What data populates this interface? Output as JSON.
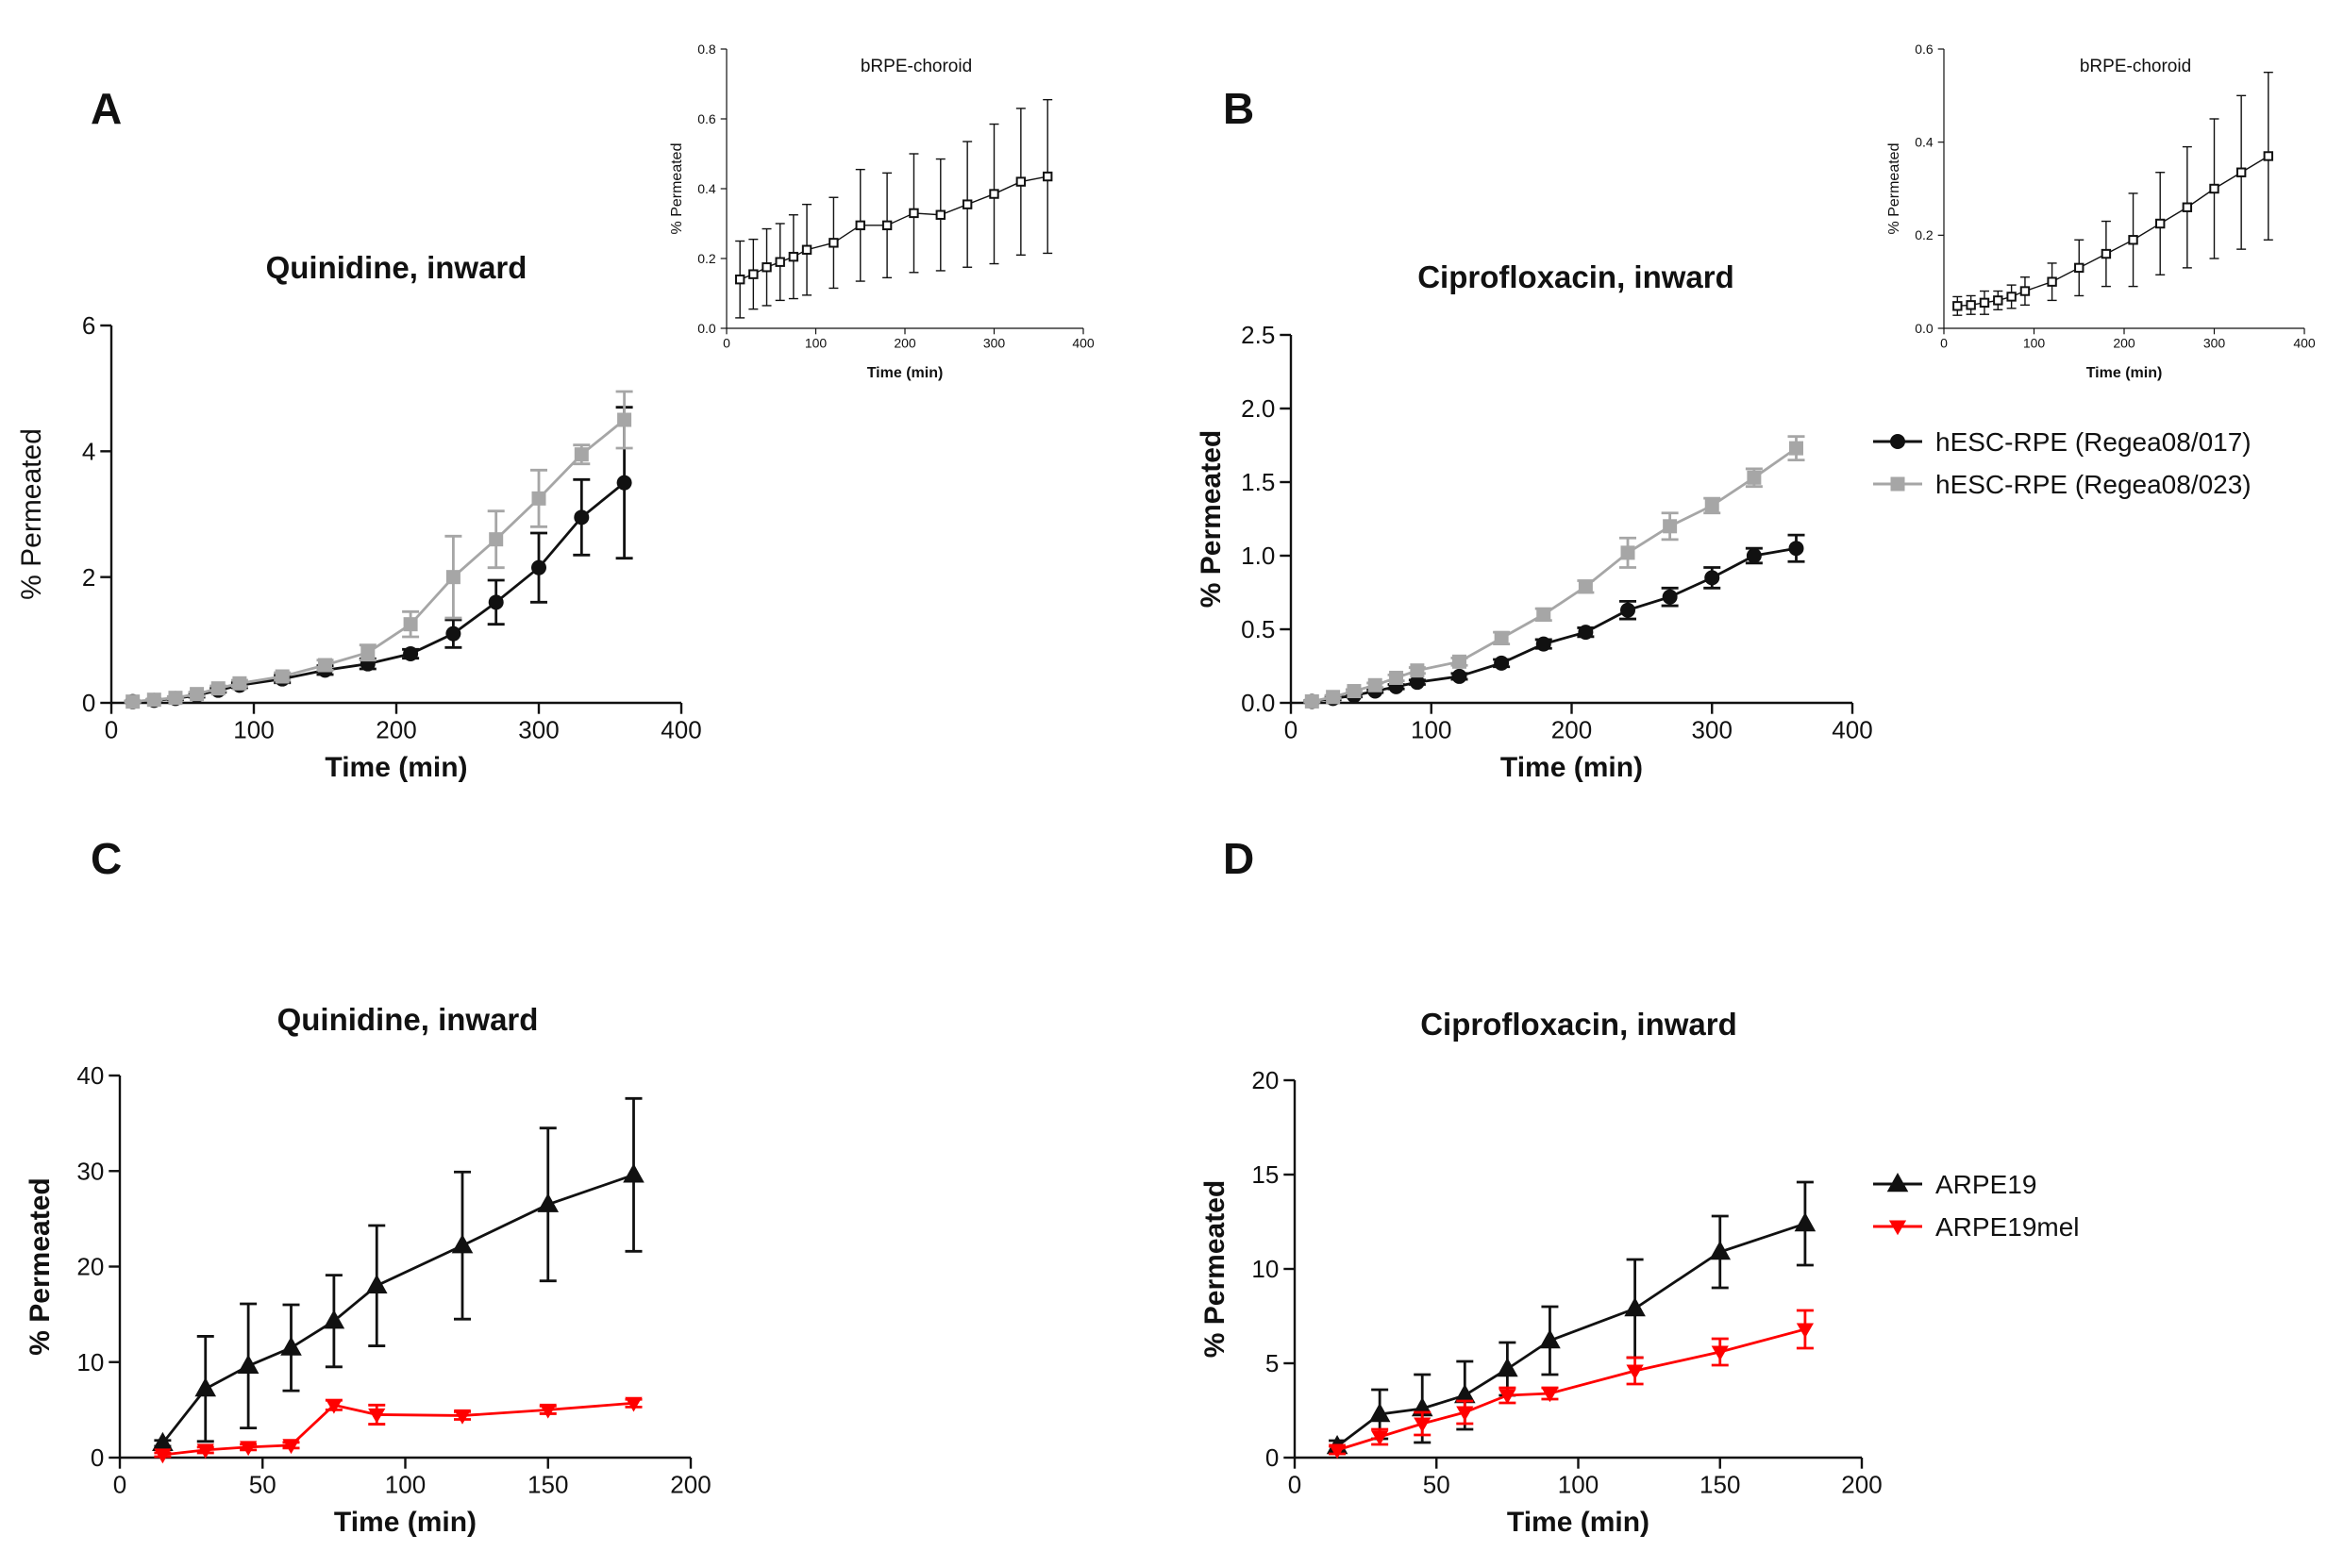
{
  "figure": {
    "panel_letters": {
      "A": "A",
      "B": "B",
      "C": "C",
      "D": "D"
    },
    "colors": {
      "black": "#111111",
      "gray": "#a6a6a6",
      "red": "#ff0000",
      "axis": "#111111"
    }
  },
  "chart_data": [
    {
      "id": "A",
      "type": "line",
      "title": "Quinidine, inward",
      "xlabel": "Time (min)",
      "ylabel": "% Permeated",
      "xlim": [
        0,
        400
      ],
      "ylim": [
        0,
        6
      ],
      "xticks": [
        0,
        100,
        200,
        300,
        400
      ],
      "yticks": [
        0,
        2,
        4,
        6
      ],
      "x": [
        15,
        30,
        45,
        60,
        75,
        90,
        120,
        150,
        180,
        210,
        240,
        270,
        300,
        330,
        360
      ],
      "series": [
        {
          "name": "hESC-RPE (Regea08/017)",
          "color": "#111111",
          "marker": "circle",
          "values": [
            0.02,
            0.04,
            0.07,
            0.12,
            0.2,
            0.28,
            0.38,
            0.52,
            0.62,
            0.78,
            1.1,
            1.6,
            2.15,
            2.95,
            3.5
          ],
          "errors": [
            0.01,
            0.01,
            0.02,
            0.03,
            0.03,
            0.04,
            0.06,
            0.07,
            0.08,
            0.07,
            0.22,
            0.35,
            0.55,
            0.6,
            1.2
          ]
        },
        {
          "name": "hESC-RPE (Regea08/023)",
          "color": "#a6a6a6",
          "marker": "square",
          "values": [
            0.02,
            0.05,
            0.08,
            0.14,
            0.23,
            0.31,
            0.42,
            0.6,
            0.8,
            1.25,
            2.0,
            2.6,
            3.25,
            3.95,
            4.5
          ],
          "errors": [
            0.01,
            0.01,
            0.02,
            0.03,
            0.04,
            0.05,
            0.06,
            0.08,
            0.12,
            0.2,
            0.65,
            0.45,
            0.45,
            0.15,
            0.45
          ]
        }
      ],
      "inset": {
        "title": "bRPE-choroid",
        "xlabel": "Time (min)",
        "ylabel": "% Permeated",
        "xlim": [
          0,
          400
        ],
        "ylim": [
          0,
          0.8
        ],
        "xticks": [
          0,
          100,
          200,
          300,
          400
        ],
        "yticks": [
          0.0,
          0.2,
          0.4,
          0.6,
          0.8
        ],
        "ytick_labels": [
          "0.0",
          "0.2",
          "0.4",
          "0.6",
          "0.8"
        ],
        "x": [
          15,
          30,
          45,
          60,
          75,
          90,
          120,
          150,
          180,
          210,
          240,
          270,
          300,
          330,
          360
        ],
        "values": [
          0.14,
          0.155,
          0.175,
          0.19,
          0.205,
          0.225,
          0.245,
          0.295,
          0.295,
          0.33,
          0.325,
          0.355,
          0.385,
          0.42,
          0.435
        ],
        "errors": [
          0.11,
          0.1,
          0.11,
          0.11,
          0.12,
          0.13,
          0.13,
          0.16,
          0.15,
          0.17,
          0.16,
          0.18,
          0.2,
          0.21,
          0.22
        ]
      }
    },
    {
      "id": "B",
      "type": "line",
      "title": "Ciprofloxacin, inward",
      "xlabel": "Time (min)",
      "ylabel": "% Permeated",
      "xlim": [
        0,
        400
      ],
      "ylim": [
        0,
        2.5
      ],
      "xticks": [
        0,
        100,
        200,
        300,
        400
      ],
      "yticks": [
        0,
        0.5,
        1.0,
        1.5,
        2.0,
        2.5
      ],
      "ytick_labels": [
        "0.0",
        "0.5",
        "1.0",
        "1.5",
        "2.0",
        "2.5"
      ],
      "x": [
        15,
        30,
        45,
        60,
        75,
        90,
        120,
        150,
        180,
        210,
        240,
        270,
        300,
        330,
        360
      ],
      "legend": [
        "hESC-RPE (Regea08/017)",
        "hESC-RPE (Regea08/023)"
      ],
      "series": [
        {
          "name": "hESC-RPE (Regea08/017)",
          "color": "#111111",
          "marker": "circle",
          "values": [
            0.01,
            0.03,
            0.05,
            0.08,
            0.11,
            0.14,
            0.18,
            0.27,
            0.4,
            0.48,
            0.63,
            0.72,
            0.85,
            1.0,
            1.05
          ],
          "errors": [
            0.005,
            0.01,
            0.01,
            0.01,
            0.015,
            0.015,
            0.02,
            0.025,
            0.03,
            0.03,
            0.06,
            0.06,
            0.07,
            0.05,
            0.09
          ]
        },
        {
          "name": "hESC-RPE (Regea08/023)",
          "color": "#a6a6a6",
          "marker": "square",
          "values": [
            0.01,
            0.04,
            0.08,
            0.12,
            0.17,
            0.22,
            0.28,
            0.44,
            0.6,
            0.79,
            1.02,
            1.2,
            1.34,
            1.53,
            1.73
          ],
          "errors": [
            0.005,
            0.01,
            0.01,
            0.015,
            0.02,
            0.02,
            0.025,
            0.04,
            0.04,
            0.04,
            0.1,
            0.09,
            0.05,
            0.06,
            0.08
          ]
        }
      ],
      "inset": {
        "title": "bRPE-choroid",
        "xlabel": "Time (min)",
        "ylabel": "% Permeated",
        "xlim": [
          0,
          400
        ],
        "ylim": [
          0,
          0.6
        ],
        "xticks": [
          0,
          100,
          200,
          300,
          400
        ],
        "yticks": [
          0.0,
          0.2,
          0.4,
          0.6
        ],
        "ytick_labels": [
          "0.0",
          "0.2",
          "0.4",
          "0.6"
        ],
        "x": [
          15,
          30,
          45,
          60,
          75,
          90,
          120,
          150,
          180,
          210,
          240,
          270,
          300,
          330,
          360
        ],
        "values": [
          0.048,
          0.05,
          0.055,
          0.06,
          0.068,
          0.08,
          0.1,
          0.13,
          0.16,
          0.19,
          0.225,
          0.26,
          0.3,
          0.335,
          0.37
        ],
        "errors": [
          0.02,
          0.02,
          0.025,
          0.02,
          0.025,
          0.03,
          0.04,
          0.06,
          0.07,
          0.1,
          0.11,
          0.13,
          0.15,
          0.165,
          0.18
        ]
      }
    },
    {
      "id": "C",
      "type": "line",
      "title": "Quinidine, inward",
      "xlabel": "Time (min)",
      "ylabel": "% Permeated",
      "xlim": [
        0,
        200
      ],
      "ylim": [
        0,
        40
      ],
      "xticks": [
        0,
        50,
        100,
        150,
        200
      ],
      "yticks": [
        0,
        10,
        20,
        30,
        40
      ],
      "x": [
        15,
        30,
        45,
        60,
        75,
        90,
        120,
        150,
        180
      ],
      "series": [
        {
          "name": "ARPE19",
          "color": "#111111",
          "marker": "triangle-up",
          "values": [
            1.5,
            7.2,
            9.6,
            11.5,
            14.3,
            18.0,
            22.2,
            26.5,
            29.6
          ],
          "errors": [
            0.3,
            5.5,
            6.5,
            4.5,
            4.8,
            6.3,
            7.7,
            8.0,
            8.0
          ]
        },
        {
          "name": "ARPE19mel",
          "color": "#ff0000",
          "marker": "triangle-down",
          "values": [
            0.3,
            0.8,
            1.1,
            1.3,
            5.5,
            4.5,
            4.4,
            5.0,
            5.7
          ],
          "errors": [
            0.2,
            0.3,
            0.3,
            0.3,
            0.5,
            1.0,
            0.4,
            0.4,
            0.4
          ]
        }
      ]
    },
    {
      "id": "D",
      "type": "line",
      "title": "Ciprofloxacin, inward",
      "xlabel": "Time (min)",
      "ylabel": "% Permeated",
      "xlim": [
        0,
        200
      ],
      "ylim": [
        0,
        20
      ],
      "xticks": [
        0,
        50,
        100,
        150,
        200
      ],
      "yticks": [
        0,
        5,
        10,
        15,
        20
      ],
      "x": [
        15,
        30,
        45,
        60,
        75,
        90,
        120,
        150,
        180
      ],
      "legend": [
        "ARPE19",
        "ARPE19mel"
      ],
      "series": [
        {
          "name": "ARPE19",
          "color": "#111111",
          "marker": "triangle-up",
          "values": [
            0.6,
            2.3,
            2.6,
            3.3,
            4.7,
            6.2,
            7.9,
            10.9,
            12.4
          ],
          "errors": [
            0.3,
            1.3,
            1.8,
            1.8,
            1.4,
            1.8,
            2.6,
            1.9,
            2.2
          ]
        },
        {
          "name": "ARPE19mel",
          "color": "#ff0000",
          "marker": "triangle-down",
          "values": [
            0.4,
            1.1,
            1.8,
            2.4,
            3.3,
            3.4,
            4.6,
            5.6,
            6.8
          ],
          "errors": [
            0.2,
            0.4,
            0.6,
            0.6,
            0.4,
            0.3,
            0.7,
            0.7,
            1.0
          ]
        }
      ]
    }
  ]
}
